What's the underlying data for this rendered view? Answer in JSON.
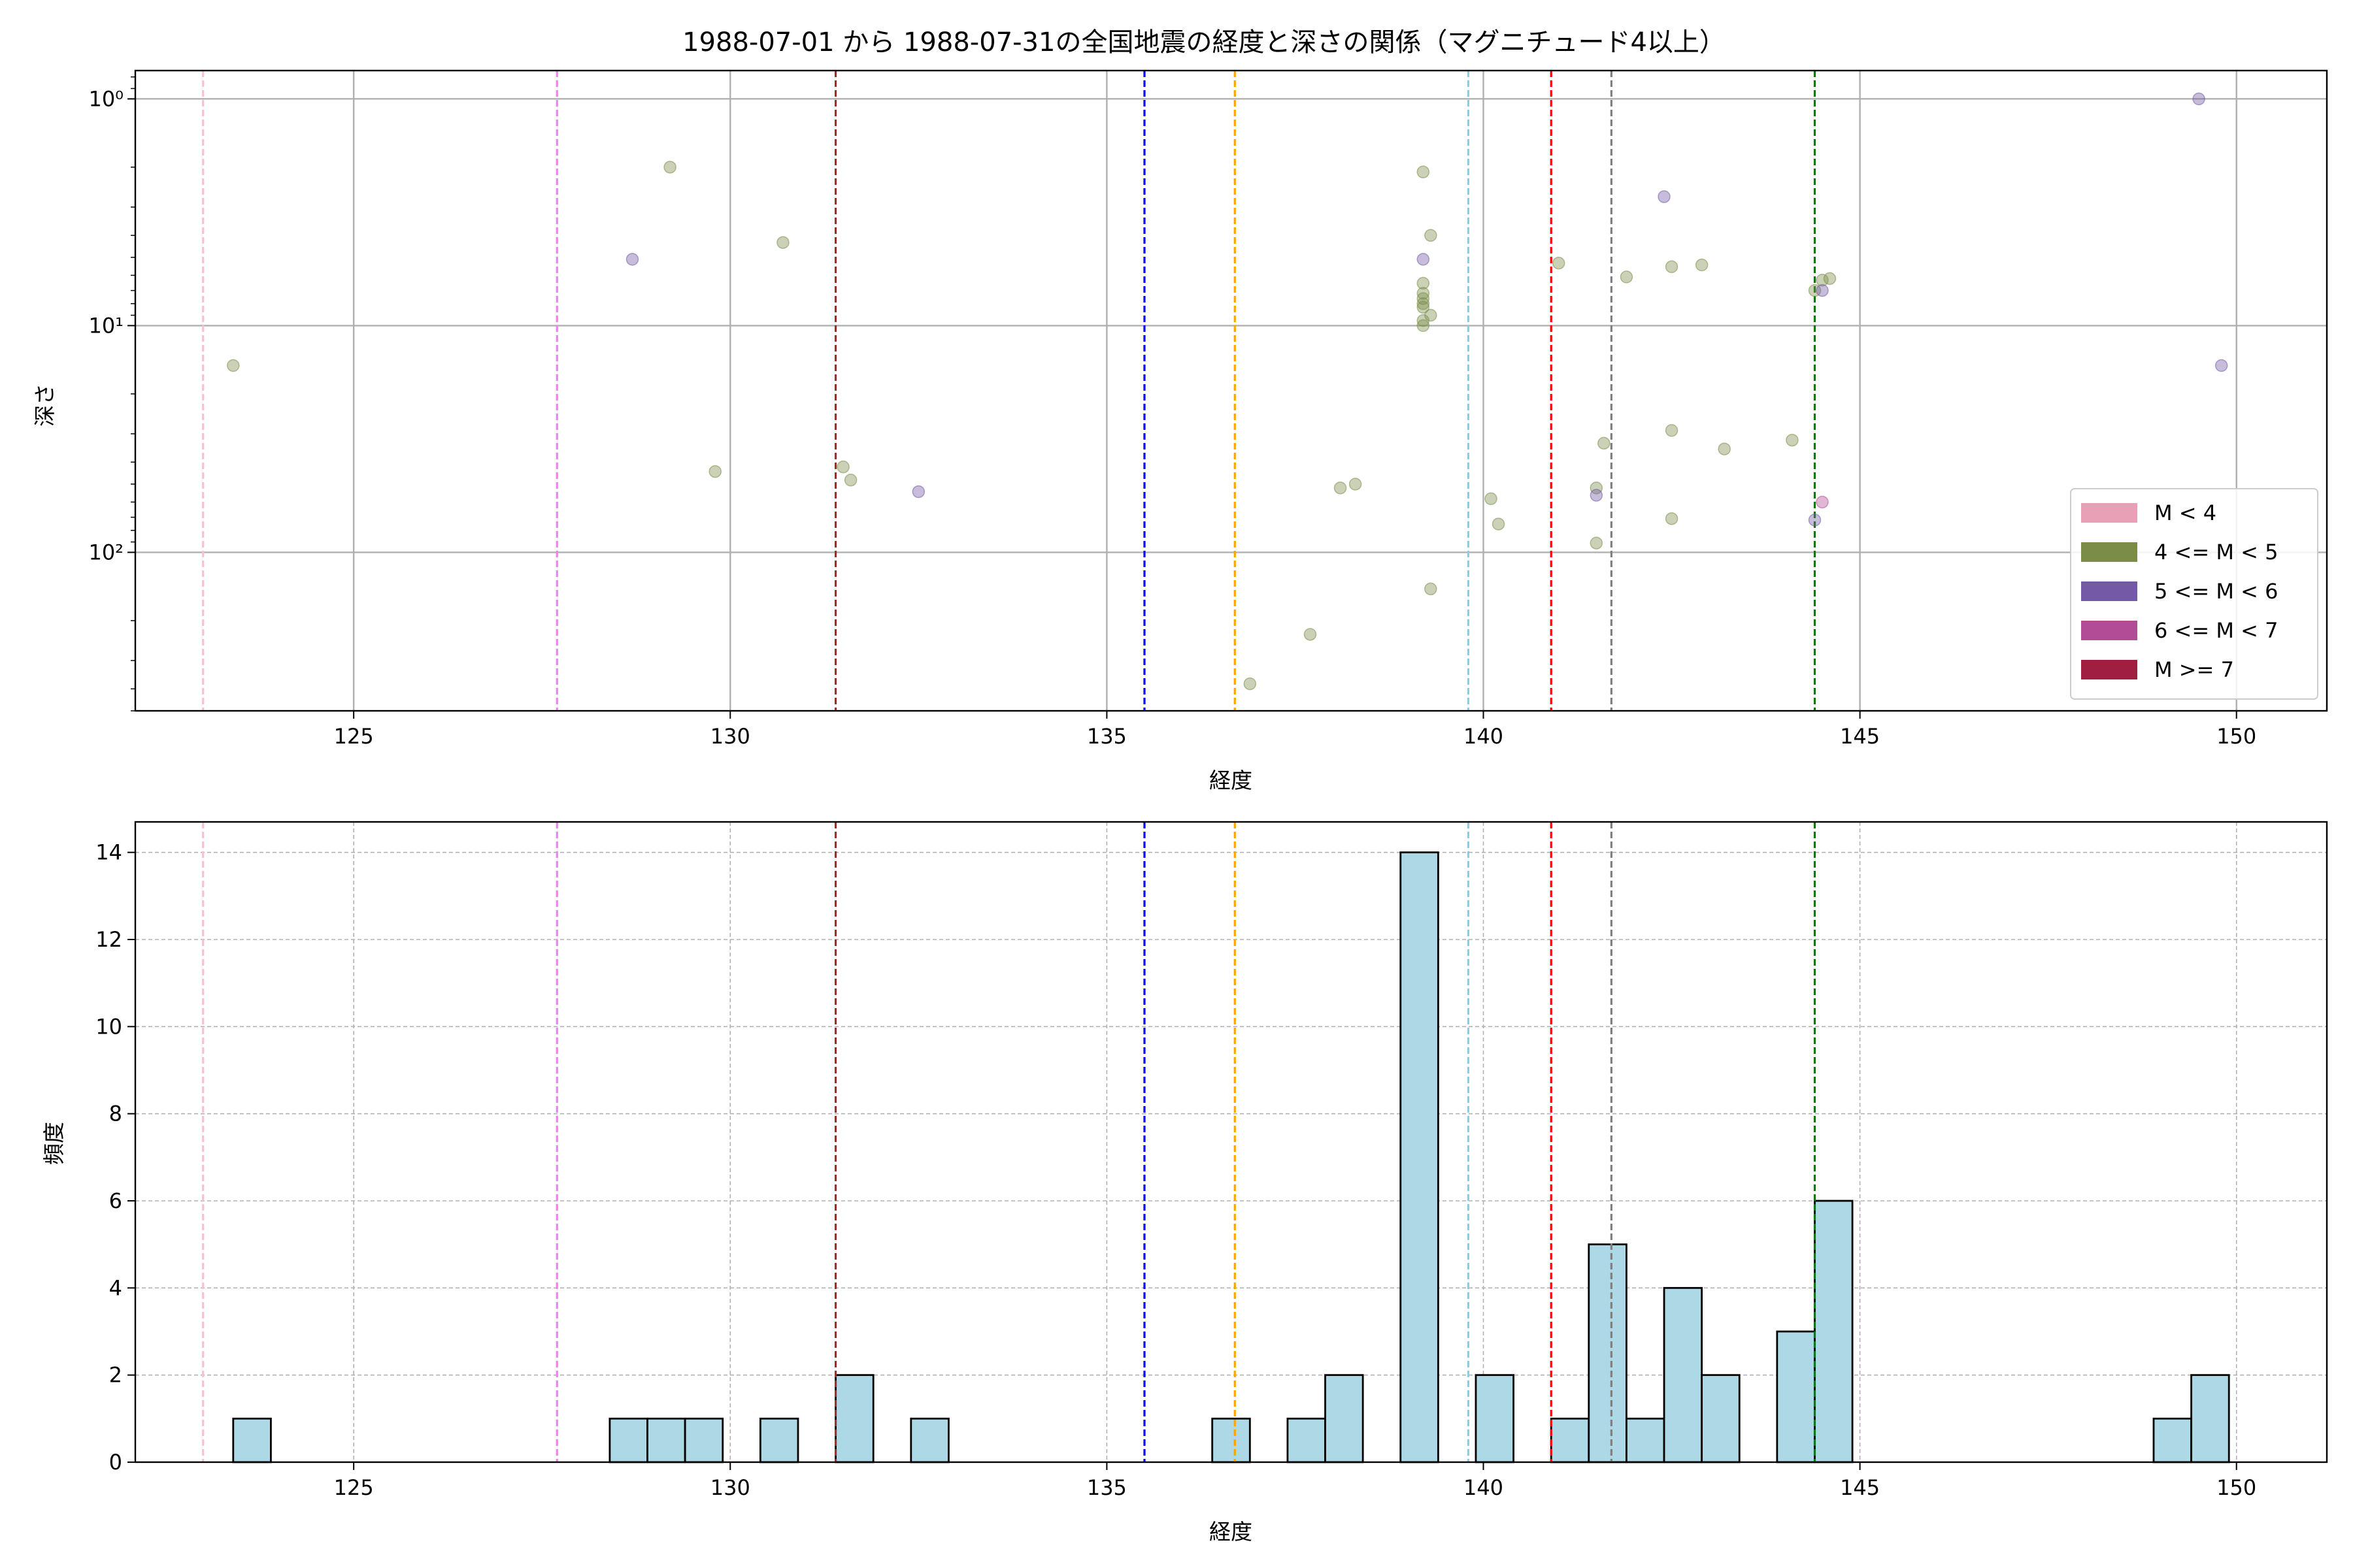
{
  "chart_data": [
    {
      "type": "scatter",
      "title": "1988-07-01 から 1988-07-31の全国地震の経度と深さの関係（マグニチュード4以上）",
      "xlabel": "経度",
      "ylabel": "深さ",
      "xlim": [
        122.1,
        151.2
      ],
      "ylim": [
        500,
        0.75
      ],
      "yscale": "log",
      "y_inverted": true,
      "x_ticks": [
        125,
        130,
        135,
        140,
        145,
        150
      ],
      "y_ticks": [
        {
          "value": 1,
          "label": "10⁰"
        },
        {
          "value": 10,
          "label": "10¹"
        },
        {
          "value": 100,
          "label": "10²"
        }
      ],
      "grid": true,
      "legend_position": "lower right",
      "legend": [
        {
          "label": "M < 4",
          "color": "#e7a0b6"
        },
        {
          "label": "4 <= M < 5",
          "color": "#7a8c48"
        },
        {
          "label": "5 <= M < 6",
          "color": "#7359a6"
        },
        {
          "label": "6 <= M < 7",
          "color": "#b34c97"
        },
        {
          "label": "M >= 7",
          "color": "#a01e40"
        }
      ],
      "series": [
        {
          "name": "4 <= M < 5",
          "color": "#7a8c48",
          "points": [
            [
              123.4,
              15
            ],
            [
              129.2,
              2
            ],
            [
              129.8,
              44
            ],
            [
              130.7,
              4.3
            ],
            [
              131.5,
              42
            ],
            [
              131.6,
              48
            ],
            [
              136.9,
              380
            ],
            [
              137.7,
              230
            ],
            [
              138.1,
              52
            ],
            [
              138.3,
              50
            ],
            [
              139.2,
              2.1
            ],
            [
              139.3,
              4
            ],
            [
              139.2,
              6.5
            ],
            [
              139.2,
              7.2
            ],
            [
              139.2,
              7.6
            ],
            [
              139.2,
              8
            ],
            [
              139.2,
              8.3
            ],
            [
              139.3,
              9
            ],
            [
              139.2,
              9.5
            ],
            [
              139.2,
              10
            ],
            [
              139.3,
              145
            ],
            [
              140.1,
              58
            ],
            [
              140.2,
              75
            ],
            [
              141.0,
              5.3
            ],
            [
              141.5,
              91
            ],
            [
              141.5,
              52
            ],
            [
              141.6,
              33
            ],
            [
              141.9,
              6.1
            ],
            [
              142.5,
              5.5
            ],
            [
              142.5,
              29
            ],
            [
              142.5,
              71
            ],
            [
              142.9,
              5.4
            ],
            [
              143.2,
              35
            ],
            [
              144.1,
              32
            ],
            [
              144.4,
              7
            ],
            [
              144.5,
              6.3
            ],
            [
              144.6,
              6.2
            ]
          ]
        },
        {
          "name": "5 <= M < 6",
          "color": "#7359a6",
          "points": [
            [
              128.7,
              5.1
            ],
            [
              132.5,
              54
            ],
            [
              139.2,
              5.1
            ],
            [
              141.5,
              56
            ],
            [
              142.4,
              2.7
            ],
            [
              144.4,
              72
            ],
            [
              144.5,
              7
            ],
            [
              149.5,
              1.0
            ],
            [
              149.8,
              15
            ]
          ]
        },
        {
          "name": "6 <= M < 7",
          "color": "#b34c97",
          "points": [
            [
              144.5,
              60
            ]
          ]
        }
      ],
      "vertical_lines": [
        {
          "x": 123.0,
          "color": "#ffc0cb"
        },
        {
          "x": 127.7,
          "color": "#ee82ee"
        },
        {
          "x": 131.4,
          "color": "#a52a2a"
        },
        {
          "x": 135.5,
          "color": "#0000ff"
        },
        {
          "x": 136.7,
          "color": "#ffa500"
        },
        {
          "x": 139.8,
          "color": "#87ceeb"
        },
        {
          "x": 140.9,
          "color": "#ff0000"
        },
        {
          "x": 141.7,
          "color": "#808080"
        },
        {
          "x": 144.4,
          "color": "#008000"
        }
      ]
    },
    {
      "type": "bar",
      "title": "",
      "xlabel": "経度",
      "ylabel": "頻度",
      "xlim": [
        122.1,
        151.2
      ],
      "ylim": [
        0,
        14.7
      ],
      "x_ticks": [
        125,
        130,
        135,
        140,
        145,
        150
      ],
      "y_ticks": [
        0,
        2,
        4,
        6,
        8,
        10,
        12,
        14
      ],
      "grid": true,
      "bar_color": "#add8e6",
      "bins": [
        {
          "x0": 123.4,
          "x1": 123.9,
          "value": 1
        },
        {
          "x0": 128.4,
          "x1": 128.9,
          "value": 1
        },
        {
          "x0": 128.9,
          "x1": 129.4,
          "value": 1
        },
        {
          "x0": 129.4,
          "x1": 129.9,
          "value": 1
        },
        {
          "x0": 130.4,
          "x1": 130.9,
          "value": 1
        },
        {
          "x0": 131.4,
          "x1": 131.9,
          "value": 2
        },
        {
          "x0": 132.4,
          "x1": 132.9,
          "value": 1
        },
        {
          "x0": 136.4,
          "x1": 136.9,
          "value": 1
        },
        {
          "x0": 137.4,
          "x1": 137.9,
          "value": 1
        },
        {
          "x0": 137.9,
          "x1": 138.4,
          "value": 2
        },
        {
          "x0": 138.9,
          "x1": 139.4,
          "value": 14
        },
        {
          "x0": 139.9,
          "x1": 140.4,
          "value": 2
        },
        {
          "x0": 140.9,
          "x1": 141.4,
          "value": 1
        },
        {
          "x0": 141.4,
          "x1": 141.9,
          "value": 5
        },
        {
          "x0": 141.9,
          "x1": 142.4,
          "value": 1
        },
        {
          "x0": 142.4,
          "x1": 142.9,
          "value": 4
        },
        {
          "x0": 142.9,
          "x1": 143.4,
          "value": 2
        },
        {
          "x0": 143.9,
          "x1": 144.4,
          "value": 3
        },
        {
          "x0": 144.4,
          "x1": 144.9,
          "value": 6
        },
        {
          "x0": 148.9,
          "x1": 149.4,
          "value": 1
        },
        {
          "x0": 149.4,
          "x1": 149.9,
          "value": 2
        }
      ],
      "vertical_lines": [
        {
          "x": 123.0,
          "color": "#ffc0cb"
        },
        {
          "x": 127.7,
          "color": "#ee82ee"
        },
        {
          "x": 131.4,
          "color": "#a52a2a"
        },
        {
          "x": 135.5,
          "color": "#0000ff"
        },
        {
          "x": 136.7,
          "color": "#ffa500"
        },
        {
          "x": 139.8,
          "color": "#87ceeb"
        },
        {
          "x": 140.9,
          "color": "#ff0000"
        },
        {
          "x": 141.7,
          "color": "#808080"
        },
        {
          "x": 144.4,
          "color": "#008000"
        }
      ]
    }
  ]
}
